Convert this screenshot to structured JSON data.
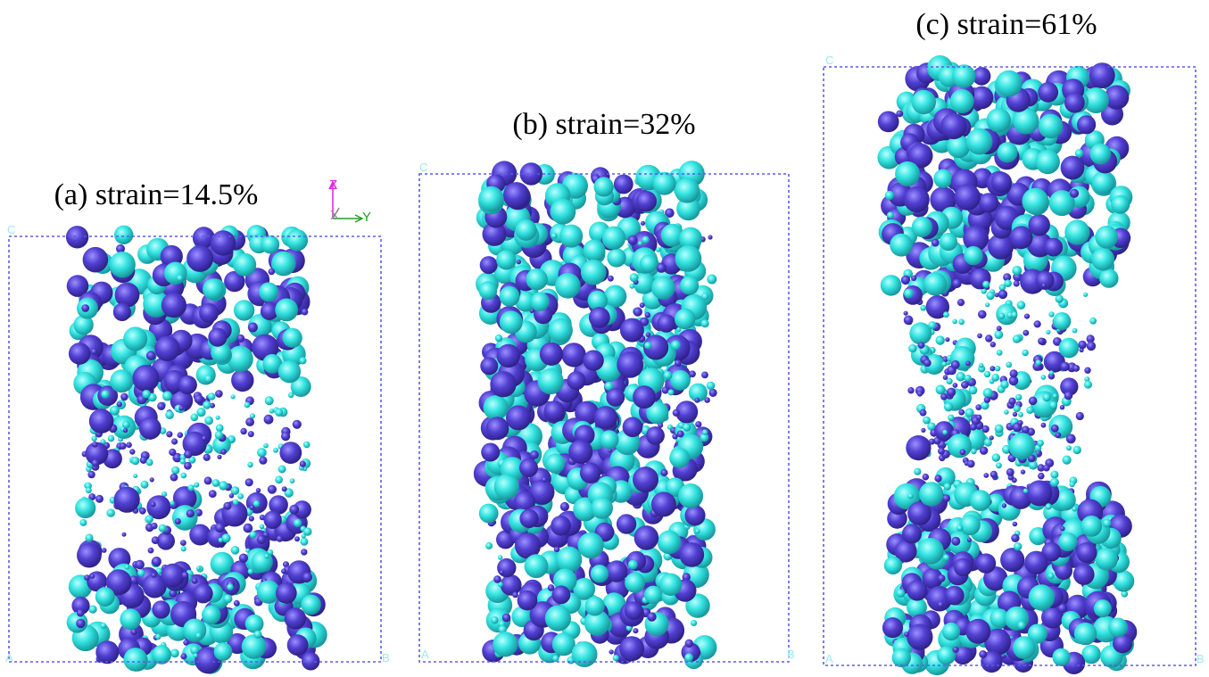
{
  "panels": [
    {
      "label": "(a) strain=14.5%",
      "corners": {
        "top_left": "C",
        "bottom_left": "A",
        "bottom_right": "B"
      }
    },
    {
      "label": "(b) strain=32%",
      "corners": {
        "top_left": "C",
        "bottom_left": "A",
        "bottom_right": "B"
      }
    },
    {
      "label": "(c) strain=61%",
      "corners": {
        "top_left": "C",
        "bottom_left": "A",
        "bottom_right": "B"
      }
    }
  ],
  "axes": {
    "z": "Z",
    "x": "X",
    "y": "Y"
  }
}
